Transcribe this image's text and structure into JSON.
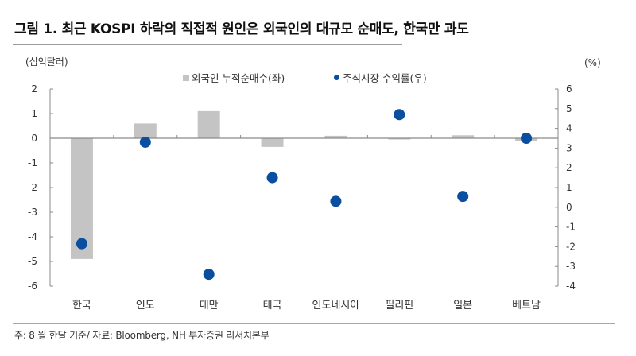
{
  "header": {
    "title": "그림 1. 최근 KOSPI 하락의 직접적 원인은 외국인의 대규모 순매도, 한국만 과도"
  },
  "chart_data": {
    "type": "bar",
    "title": "그림 1. 최근 KOSPI 하락의 직접적 원인은 외국인의 대규모 순매도, 한국만 과도",
    "categories": [
      "한국",
      "인도",
      "대만",
      "태국",
      "인도네시아",
      "필리핀",
      "일본",
      "베트남"
    ],
    "series": [
      {
        "name": "외국인 누적순매수(좌)",
        "type": "bar",
        "axis": "left",
        "color": "#c4c4c4",
        "values": [
          -4.9,
          0.6,
          1.1,
          -0.35,
          0.1,
          -0.05,
          0.12,
          -0.1
        ]
      },
      {
        "name": "주식시장 수익률(우)",
        "type": "scatter",
        "axis": "right",
        "color": "#0a4ea0",
        "values": [
          -1.85,
          3.3,
          -3.4,
          1.5,
          0.3,
          4.7,
          0.55,
          3.5
        ]
      }
    ],
    "ylabel_left": "(십억달러)",
    "ylabel_right": "(%)",
    "ylim_left": [
      -6,
      2
    ],
    "ylim_right": [
      -4,
      6
    ],
    "yticks_left": [
      2,
      1,
      0,
      -1,
      -2,
      -3,
      -4,
      -5,
      -6
    ],
    "yticks_right": [
      6,
      5,
      4,
      3,
      2,
      1,
      0,
      -1,
      -2,
      -3,
      -4
    ],
    "legend_position": "top",
    "grid": false
  },
  "legend": {
    "bar_label": "외국인 누적순매수(좌)",
    "dot_label": "주식시장 수익률(우)"
  },
  "axes": {
    "left_unit": "(십억달러)",
    "right_unit": "(%)"
  },
  "footnote": "주: 8 월 한달 기준/ 자료: Bloomberg, NH 투자증권 리서치본부"
}
